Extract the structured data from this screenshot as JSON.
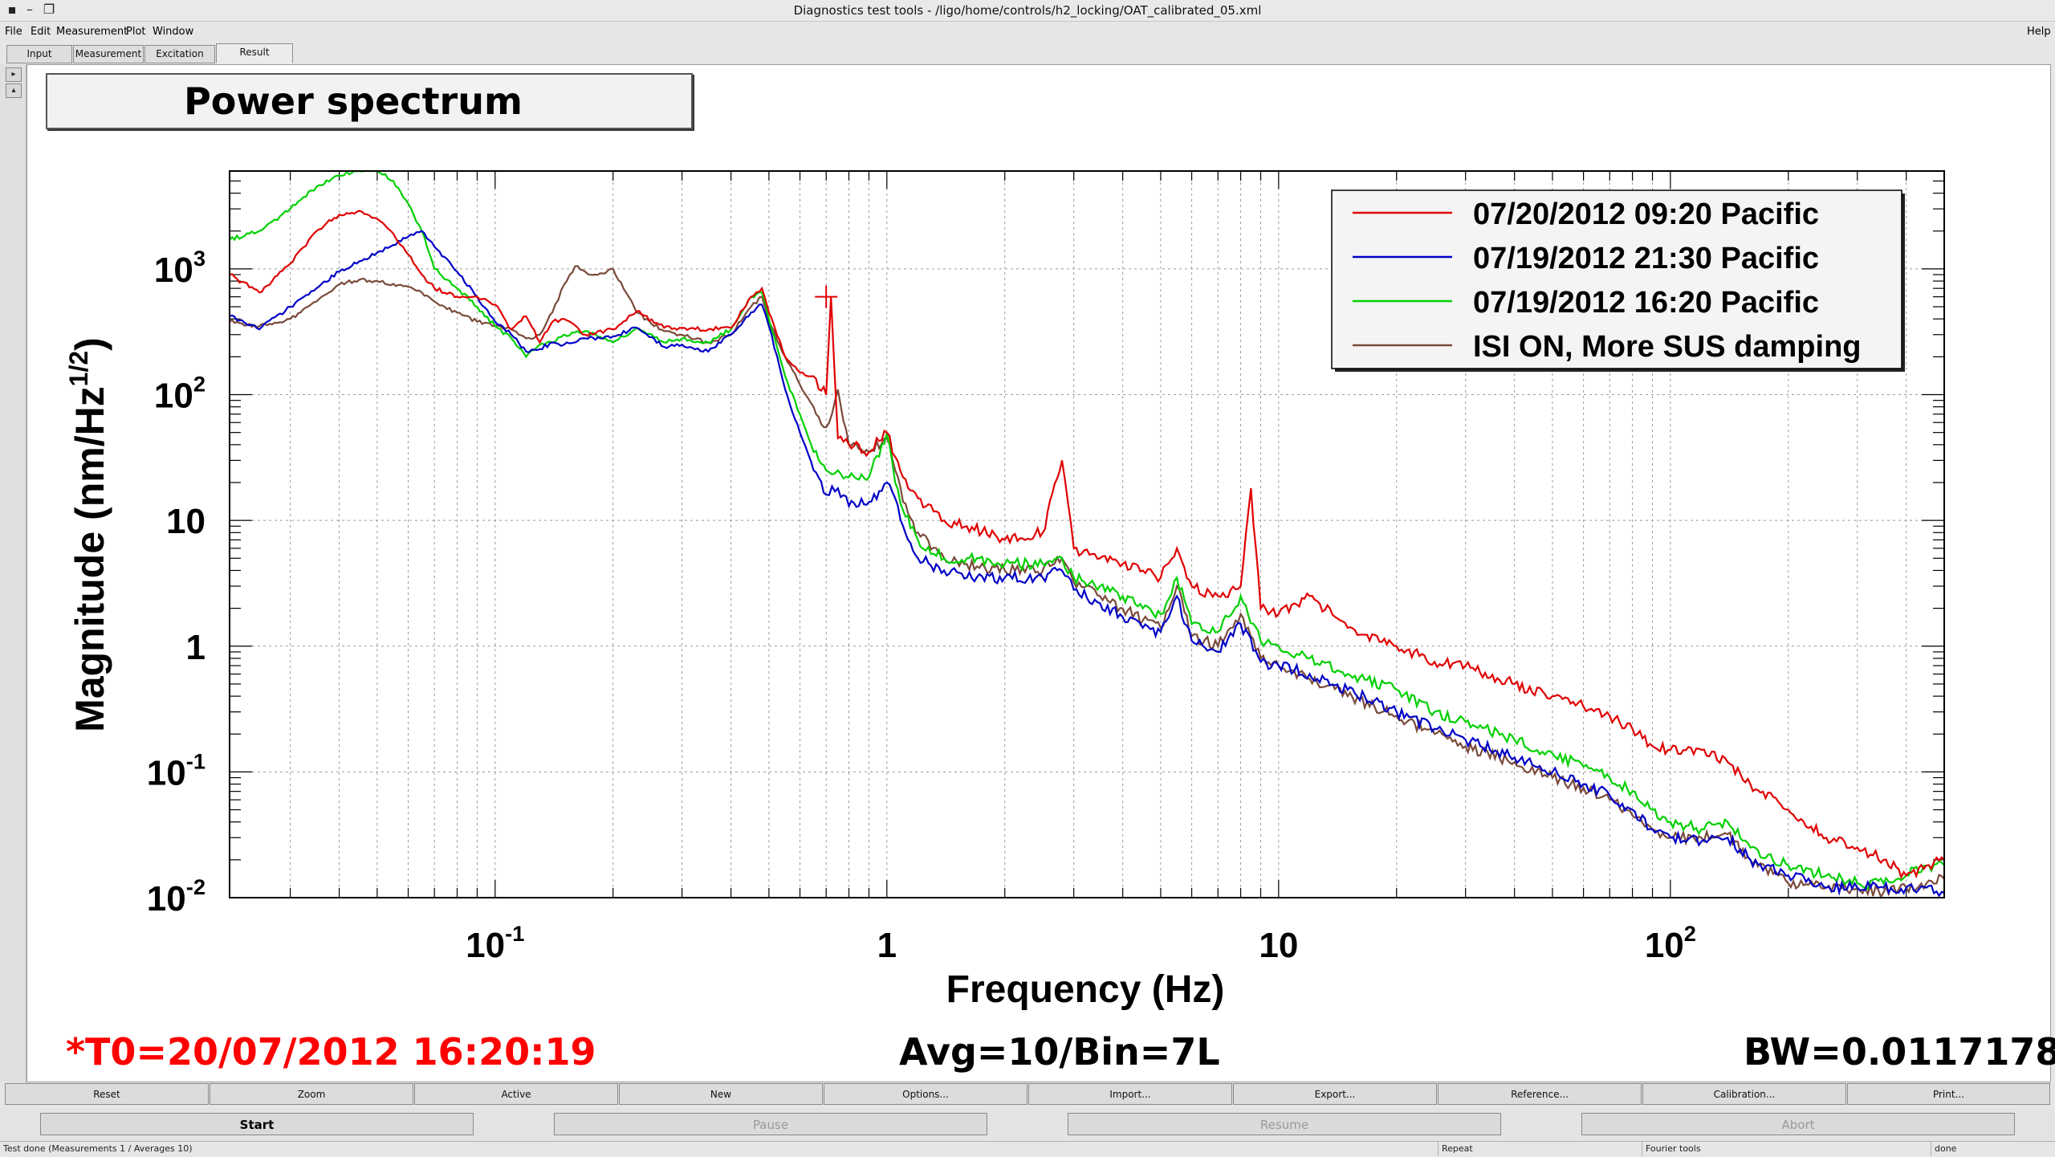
{
  "window": {
    "title": "Diagnostics test tools - /ligo/home/controls/h2_locking/OAT_calibrated_05.xml"
  },
  "menu": {
    "file": "File",
    "edit": "Edit",
    "measurement": "Measurement",
    "plot": "Plot",
    "window": "Window",
    "help": "Help"
  },
  "tabs": {
    "input": "Input",
    "measurement": "Measurement",
    "excitation": "Excitation",
    "result": "Result",
    "active": "Result"
  },
  "plot": {
    "title": "Power spectrum",
    "t0": "*T0=20/07/2012 16:20:19",
    "avg": "Avg=10/Bin=7L",
    "bw": "BW=0.0117178"
  },
  "chart_data": {
    "type": "line",
    "title": "Power spectrum",
    "xlabel": "Frequency (Hz)",
    "ylabel": "Magnitude (nm/Hz^(1/2))",
    "xscale": "log",
    "yscale": "log",
    "xlim": [
      0.021,
      500
    ],
    "ylim": [
      0.01,
      6000
    ],
    "x_ticks": [
      "10^-1",
      "1",
      "10",
      "10^2"
    ],
    "y_ticks": [
      "10^-2",
      "10^-1",
      "1",
      "10",
      "10^2",
      "10^3"
    ],
    "grid": true,
    "legend_position": "top-right",
    "series": [
      {
        "name": "07/20/2012 09:20 Pacific",
        "color": "#e00000",
        "x": [
          0.021,
          0.025,
          0.03,
          0.035,
          0.04,
          0.045,
          0.05,
          0.055,
          0.06,
          0.065,
          0.07,
          0.08,
          0.09,
          0.1,
          0.11,
          0.12,
          0.13,
          0.14,
          0.15,
          0.17,
          0.2,
          0.23,
          0.27,
          0.3,
          0.35,
          0.4,
          0.45,
          0.48,
          0.5,
          0.55,
          0.6,
          0.65,
          0.7,
          0.72,
          0.75,
          0.8,
          0.9,
          1.0,
          1.05,
          1.1,
          1.2,
          1.4,
          1.6,
          2.0,
          2.5,
          2.8,
          3.0,
          3.5,
          4.0,
          4.5,
          5.0,
          5.5,
          6.0,
          7.0,
          8.0,
          8.5,
          9.0,
          10.0,
          12.0,
          15.0,
          20.0,
          25.0,
          30.0,
          40.0,
          50.0,
          60.0,
          70.0,
          80.0,
          90.0,
          100.0,
          120.0,
          140.0,
          160.0,
          200.0,
          250.0,
          300.0,
          350.0,
          400.0,
          450.0,
          500.0
        ],
        "values": [
          900,
          650,
          1100,
          2000,
          2700,
          2900,
          2500,
          1900,
          1300,
          900,
          700,
          600,
          600,
          520,
          330,
          420,
          260,
          380,
          400,
          300,
          330,
          460,
          340,
          340,
          330,
          340,
          600,
          700,
          450,
          200,
          150,
          140,
          100,
          600,
          45,
          40,
          35,
          50,
          32,
          22,
          15,
          10,
          9,
          7,
          8,
          30,
          6,
          5,
          4.5,
          4,
          3.5,
          6,
          3,
          2.5,
          3,
          18,
          2,
          1.8,
          2.5,
          1.4,
          1.0,
          0.75,
          0.7,
          0.5,
          0.4,
          0.33,
          0.28,
          0.22,
          0.16,
          0.15,
          0.15,
          0.12,
          0.08,
          0.05,
          0.03,
          0.025,
          0.02,
          0.015,
          0.018,
          0.02
        ]
      },
      {
        "name": "07/19/2012 21:30 Pacific",
        "color": "#0000c8",
        "x": [
          0.021,
          0.025,
          0.03,
          0.035,
          0.04,
          0.045,
          0.05,
          0.055,
          0.06,
          0.065,
          0.07,
          0.08,
          0.09,
          0.1,
          0.11,
          0.12,
          0.13,
          0.14,
          0.15,
          0.17,
          0.2,
          0.23,
          0.27,
          0.3,
          0.35,
          0.4,
          0.45,
          0.48,
          0.5,
          0.55,
          0.6,
          0.65,
          0.7,
          0.75,
          0.8,
          0.9,
          1.0,
          1.05,
          1.1,
          1.2,
          1.4,
          1.6,
          2.0,
          2.5,
          2.8,
          3.0,
          3.5,
          4.0,
          4.5,
          5.0,
          5.5,
          6.0,
          7.0,
          8.0,
          9.0,
          10.0,
          12.0,
          15.0,
          20.0,
          25.0,
          30.0,
          40.0,
          50.0,
          60.0,
          70.0,
          80.0,
          90.0,
          100.0,
          120.0,
          140.0,
          160.0,
          200.0,
          250.0,
          300.0,
          350.0,
          400.0,
          450.0,
          500.0
        ],
        "values": [
          420,
          330,
          500,
          700,
          950,
          1150,
          1350,
          1550,
          1800,
          2000,
          1500,
          950,
          600,
          380,
          300,
          220,
          230,
          260,
          250,
          280,
          290,
          340,
          240,
          250,
          220,
          300,
          450,
          520,
          350,
          110,
          50,
          25,
          16,
          18,
          13,
          14,
          20,
          15,
          9,
          5,
          4,
          3.5,
          3.5,
          3.5,
          4,
          2.8,
          2.2,
          1.7,
          1.4,
          1.3,
          2.5,
          1.1,
          0.9,
          1.5,
          0.75,
          0.7,
          0.6,
          0.45,
          0.3,
          0.22,
          0.18,
          0.13,
          0.1,
          0.08,
          0.065,
          0.05,
          0.035,
          0.03,
          0.028,
          0.03,
          0.02,
          0.015,
          0.012,
          0.012,
          0.012,
          0.012,
          0.012,
          0.011
        ]
      },
      {
        "name": "07/19/2012 16:20 Pacific",
        "color": "#00d000",
        "x": [
          0.021,
          0.025,
          0.03,
          0.035,
          0.04,
          0.045,
          0.05,
          0.055,
          0.06,
          0.065,
          0.07,
          0.08,
          0.09,
          0.1,
          0.11,
          0.12,
          0.13,
          0.14,
          0.15,
          0.17,
          0.2,
          0.23,
          0.27,
          0.3,
          0.35,
          0.4,
          0.45,
          0.48,
          0.5,
          0.55,
          0.6,
          0.65,
          0.7,
          0.75,
          0.8,
          0.9,
          1.0,
          1.05,
          1.1,
          1.2,
          1.4,
          1.6,
          2.0,
          2.5,
          2.8,
          3.0,
          3.5,
          4.0,
          4.5,
          5.0,
          5.5,
          6.0,
          7.0,
          8.0,
          9.0,
          10.0,
          12.0,
          15.0,
          20.0,
          25.0,
          30.0,
          40.0,
          50.0,
          60.0,
          70.0,
          80.0,
          90.0,
          100.0,
          120.0,
          140.0,
          160.0,
          200.0,
          250.0,
          300.0,
          350.0,
          400.0,
          450.0,
          500.0
        ],
        "values": [
          1700,
          2000,
          3000,
          4500,
          5500,
          6200,
          6000,
          5000,
          3300,
          2000,
          1000,
          700,
          500,
          350,
          280,
          200,
          250,
          260,
          300,
          320,
          260,
          340,
          260,
          280,
          260,
          330,
          600,
          650,
          400,
          140,
          70,
          35,
          25,
          25,
          22,
          22,
          50,
          20,
          12,
          7,
          5,
          5,
          4.5,
          4.5,
          5,
          3.5,
          3,
          2.5,
          2,
          1.8,
          3.5,
          1.5,
          1.3,
          2.5,
          1.1,
          1.0,
          0.8,
          0.6,
          0.45,
          0.3,
          0.25,
          0.18,
          0.14,
          0.11,
          0.09,
          0.07,
          0.05,
          0.04,
          0.035,
          0.04,
          0.025,
          0.018,
          0.015,
          0.013,
          0.013,
          0.015,
          0.018,
          0.018
        ]
      },
      {
        "name": "ISI ON, More SUS damping",
        "color": "#7a4a3a",
        "x": [
          0.021,
          0.025,
          0.03,
          0.035,
          0.04,
          0.045,
          0.05,
          0.055,
          0.06,
          0.065,
          0.07,
          0.08,
          0.09,
          0.1,
          0.11,
          0.12,
          0.13,
          0.14,
          0.15,
          0.16,
          0.17,
          0.18,
          0.2,
          0.23,
          0.27,
          0.3,
          0.35,
          0.4,
          0.45,
          0.48,
          0.5,
          0.55,
          0.6,
          0.65,
          0.7,
          0.75,
          0.8,
          0.9,
          1.0,
          1.05,
          1.1,
          1.2,
          1.4,
          1.6,
          2.0,
          2.5,
          2.8,
          3.0,
          3.5,
          4.0,
          4.5,
          5.0,
          5.5,
          6.0,
          7.0,
          8.0,
          9.0,
          10.0,
          12.0,
          15.0,
          20.0,
          25.0,
          30.0,
          40.0,
          50.0,
          60.0,
          70.0,
          80.0,
          90.0,
          100.0,
          120.0,
          140.0,
          160.0,
          200.0,
          250.0,
          300.0,
          350.0,
          400.0,
          450.0,
          500.0
        ],
        "values": [
          380,
          350,
          400,
          550,
          750,
          820,
          800,
          760,
          720,
          650,
          550,
          450,
          380,
          350,
          330,
          280,
          300,
          450,
          750,
          1050,
          950,
          900,
          1000,
          450,
          320,
          300,
          260,
          300,
          500,
          600,
          380,
          200,
          120,
          80,
          55,
          110,
          40,
          35,
          45,
          25,
          14,
          8,
          5,
          4.5,
          4,
          4,
          5,
          3.2,
          2.5,
          2,
          1.6,
          1.4,
          3,
          1.2,
          1.0,
          1.8,
          0.8,
          0.7,
          0.55,
          0.4,
          0.28,
          0.2,
          0.16,
          0.12,
          0.09,
          0.075,
          0.06,
          0.045,
          0.035,
          0.03,
          0.03,
          0.032,
          0.02,
          0.013,
          0.012,
          0.012,
          0.011,
          0.012,
          0.013,
          0.014
        ]
      }
    ]
  },
  "buttons_row1": [
    "Reset",
    "Zoom",
    "Active",
    "New",
    "Options...",
    "Import...",
    "Export...",
    "Reference...",
    "Calibration...",
    "Print..."
  ],
  "buttons_row2": {
    "start": "Start",
    "pause": "Pause",
    "resume": "Resume",
    "abort": "Abort"
  },
  "status": {
    "main": "Test done (Measurements 1 / Averages 10)",
    "repeat": "Repeat",
    "tool": "Fourier tools",
    "state": "done"
  },
  "colors": {
    "t0_text": "#ff0000",
    "frame": "#000000"
  }
}
